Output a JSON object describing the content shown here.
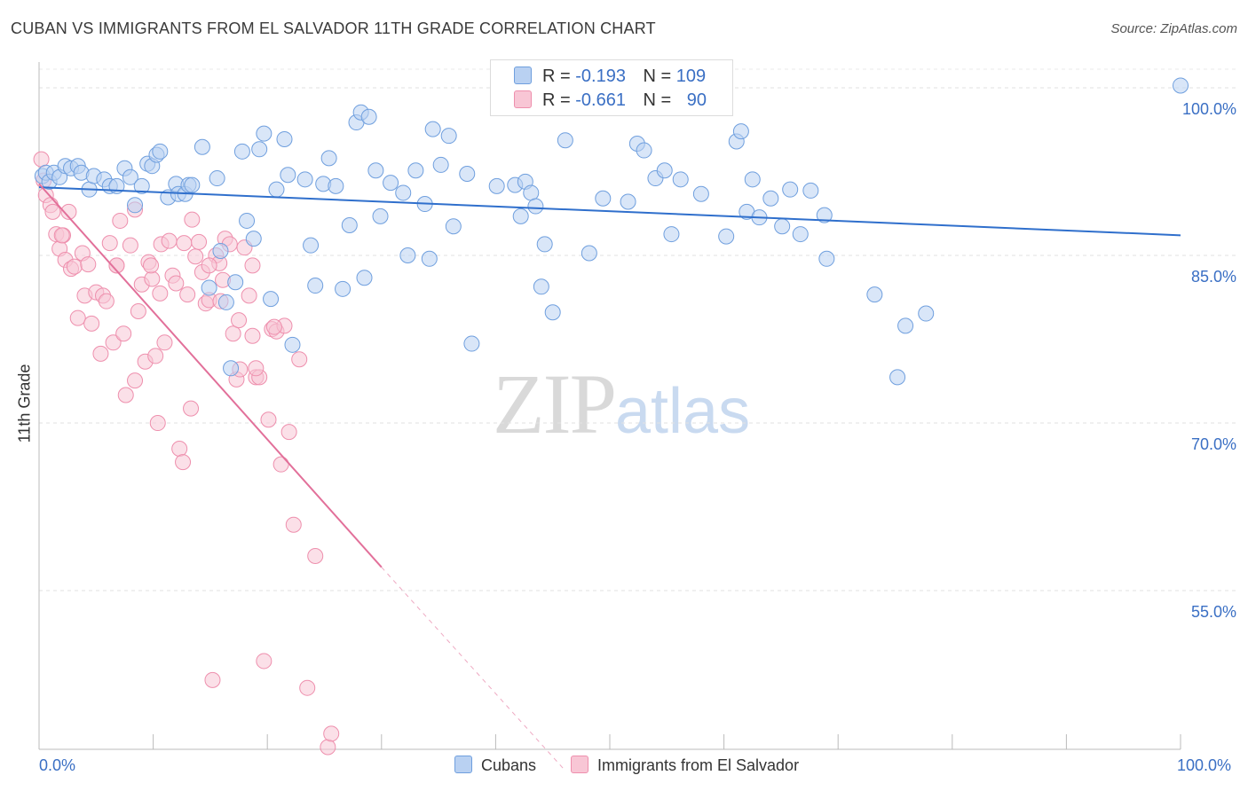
{
  "header": {
    "title": "CUBAN VS IMMIGRANTS FROM EL SALVADOR 11TH GRADE CORRELATION CHART",
    "source": "Source: ZipAtlas.com"
  },
  "watermark": {
    "zip": "ZIP",
    "atlas": "atlas"
  },
  "legend": {
    "rows": [
      {
        "r_label": "R =",
        "r_value": "-0.193",
        "n_label": "N =",
        "n_value": "109",
        "color": "#a9c7ee"
      },
      {
        "r_label": "R =",
        "r_value": "-0.661",
        "n_label": "N =",
        "n_value": "90",
        "color": "#f6b7c9"
      }
    ]
  },
  "bottom_legend": {
    "cubans": "Cubans",
    "salvador": "Immigrants from El Salvador"
  },
  "chart_data": {
    "type": "scatter",
    "ylabel": "11th Grade",
    "xlim": [
      0,
      100
    ],
    "ylim": [
      40.8,
      102.3
    ],
    "x_tick_labels": [
      "0.0%",
      "100.0%"
    ],
    "y_ticks": [
      {
        "value": 100,
        "label": "100.0%"
      },
      {
        "value": 85,
        "label": "85.0%"
      },
      {
        "value": 70,
        "label": "70.0%"
      },
      {
        "value": 55,
        "label": "55.0%"
      }
    ],
    "grid": true,
    "colors": {
      "cubans": "#6f9fde",
      "cubans_fill": "#b9d1f2",
      "cubans_line": "#2f6fcc",
      "salvador": "#ee8fad",
      "salvador_fill": "#f8c6d5",
      "salvador_line": "#e2709a"
    },
    "series": [
      {
        "name": "Cubans",
        "trend": {
          "x0": 0,
          "y0": 91.1,
          "x1": 100,
          "y1": 86.8
        },
        "points": [
          [
            0.3,
            92.1
          ],
          [
            0.6,
            92.4
          ],
          [
            0.9,
            91.6
          ],
          [
            1.3,
            92.4
          ],
          [
            1.8,
            92.0
          ],
          [
            2.3,
            93.0
          ],
          [
            2.8,
            92.8
          ],
          [
            3.4,
            93.0
          ],
          [
            3.7,
            92.4
          ],
          [
            4.4,
            90.9
          ],
          [
            4.8,
            92.1
          ],
          [
            5.7,
            91.8
          ],
          [
            6.2,
            91.2
          ],
          [
            6.8,
            91.2
          ],
          [
            7.5,
            92.8
          ],
          [
            8.0,
            92.0
          ],
          [
            8.4,
            89.5
          ],
          [
            9.0,
            91.2
          ],
          [
            9.5,
            93.2
          ],
          [
            9.9,
            93.0
          ],
          [
            10.3,
            94.0
          ],
          [
            10.6,
            94.3
          ],
          [
            11.3,
            90.2
          ],
          [
            12.0,
            91.4
          ],
          [
            12.2,
            90.5
          ],
          [
            12.8,
            90.5
          ],
          [
            13.1,
            91.3
          ],
          [
            13.4,
            91.3
          ],
          [
            14.3,
            94.7
          ],
          [
            14.9,
            82.1
          ],
          [
            15.6,
            91.9
          ],
          [
            15.9,
            85.4
          ],
          [
            16.4,
            80.8
          ],
          [
            16.8,
            74.9
          ],
          [
            17.2,
            82.6
          ],
          [
            17.8,
            94.3
          ],
          [
            18.2,
            88.1
          ],
          [
            18.8,
            86.5
          ],
          [
            19.3,
            94.5
          ],
          [
            19.7,
            95.9
          ],
          [
            20.3,
            81.1
          ],
          [
            20.8,
            90.9
          ],
          [
            21.5,
            95.4
          ],
          [
            21.8,
            92.2
          ],
          [
            22.2,
            77.0
          ],
          [
            23.3,
            91.8
          ],
          [
            23.8,
            85.9
          ],
          [
            24.2,
            82.3
          ],
          [
            24.9,
            91.4
          ],
          [
            25.4,
            93.7
          ],
          [
            26.0,
            91.2
          ],
          [
            26.6,
            82.0
          ],
          [
            27.2,
            87.7
          ],
          [
            27.8,
            96.9
          ],
          [
            28.2,
            97.8
          ],
          [
            28.5,
            83.0
          ],
          [
            28.9,
            97.4
          ],
          [
            29.5,
            92.6
          ],
          [
            29.9,
            88.5
          ],
          [
            30.8,
            91.5
          ],
          [
            31.9,
            90.6
          ],
          [
            32.3,
            85.0
          ],
          [
            33.0,
            92.6
          ],
          [
            33.8,
            89.6
          ],
          [
            34.2,
            84.7
          ],
          [
            34.5,
            96.3
          ],
          [
            35.2,
            93.1
          ],
          [
            35.9,
            95.7
          ],
          [
            36.3,
            87.6
          ],
          [
            37.5,
            92.3
          ],
          [
            37.9,
            77.1
          ],
          [
            40.1,
            91.2
          ],
          [
            41.7,
            91.3
          ],
          [
            42.2,
            88.5
          ],
          [
            42.6,
            91.6
          ],
          [
            43.1,
            90.6
          ],
          [
            43.5,
            89.4
          ],
          [
            44.0,
            82.2
          ],
          [
            44.3,
            86.0
          ],
          [
            45.0,
            79.9
          ],
          [
            46.1,
            95.3
          ],
          [
            48.2,
            85.2
          ],
          [
            49.4,
            90.1
          ],
          [
            51.6,
            89.8
          ],
          [
            52.4,
            95.0
          ],
          [
            53.0,
            94.4
          ],
          [
            54.0,
            91.9
          ],
          [
            54.8,
            92.6
          ],
          [
            55.4,
            86.9
          ],
          [
            56.2,
            91.8
          ],
          [
            58.0,
            90.5
          ],
          [
            60.2,
            86.7
          ],
          [
            61.1,
            95.2
          ],
          [
            61.5,
            96.1
          ],
          [
            62.0,
            88.9
          ],
          [
            62.5,
            91.8
          ],
          [
            63.1,
            88.4
          ],
          [
            64.1,
            90.1
          ],
          [
            65.1,
            87.6
          ],
          [
            65.8,
            90.9
          ],
          [
            66.7,
            86.9
          ],
          [
            67.6,
            90.8
          ],
          [
            68.8,
            88.6
          ],
          [
            69.0,
            84.7
          ],
          [
            73.2,
            81.5
          ],
          [
            75.2,
            74.1
          ],
          [
            75.9,
            78.7
          ],
          [
            77.7,
            79.8
          ],
          [
            100.0,
            100.2
          ]
        ]
      },
      {
        "name": "Immigrants from El Salvador",
        "trend": {
          "x0": 0,
          "y0": 91.4,
          "x1": 30,
          "y1": 57.1,
          "dash_x1": 46,
          "dash_y1": 39.0
        },
        "points": [
          [
            0.2,
            93.6
          ],
          [
            0.4,
            91.7
          ],
          [
            0.6,
            90.4
          ],
          [
            1.0,
            89.5
          ],
          [
            1.2,
            88.9
          ],
          [
            1.5,
            86.9
          ],
          [
            1.8,
            85.6
          ],
          [
            2.1,
            86.8
          ],
          [
            2.3,
            84.6
          ],
          [
            2.6,
            88.9
          ],
          [
            2.8,
            83.8
          ],
          [
            3.1,
            84.0
          ],
          [
            3.4,
            79.4
          ],
          [
            3.8,
            85.2
          ],
          [
            4.0,
            81.4
          ],
          [
            4.3,
            84.2
          ],
          [
            4.6,
            78.9
          ],
          [
            5.0,
            81.7
          ],
          [
            5.4,
            76.2
          ],
          [
            5.6,
            81.4
          ],
          [
            5.9,
            80.9
          ],
          [
            6.2,
            86.1
          ],
          [
            6.5,
            77.2
          ],
          [
            6.8,
            84.1
          ],
          [
            7.1,
            88.1
          ],
          [
            7.4,
            78.0
          ],
          [
            7.6,
            72.5
          ],
          [
            8.0,
            85.9
          ],
          [
            8.4,
            73.8
          ],
          [
            8.7,
            80.0
          ],
          [
            9.0,
            82.4
          ],
          [
            9.3,
            75.5
          ],
          [
            9.6,
            84.4
          ],
          [
            9.9,
            82.9
          ],
          [
            10.2,
            76.0
          ],
          [
            10.4,
            70.0
          ],
          [
            10.7,
            86.0
          ],
          [
            11.0,
            77.2
          ],
          [
            11.4,
            86.3
          ],
          [
            11.7,
            83.2
          ],
          [
            12.0,
            82.5
          ],
          [
            12.3,
            67.7
          ],
          [
            12.6,
            66.5
          ],
          [
            13.0,
            81.5
          ],
          [
            13.3,
            71.3
          ],
          [
            13.7,
            84.9
          ],
          [
            14.0,
            86.2
          ],
          [
            14.3,
            83.5
          ],
          [
            14.6,
            80.7
          ],
          [
            14.9,
            81.0
          ],
          [
            15.2,
            47.0
          ],
          [
            15.5,
            85.0
          ],
          [
            15.9,
            80.9
          ],
          [
            16.3,
            86.5
          ],
          [
            16.7,
            86.0
          ],
          [
            17.0,
            78.0
          ],
          [
            17.3,
            73.9
          ],
          [
            17.6,
            74.8
          ],
          [
            18.0,
            85.7
          ],
          [
            18.4,
            81.4
          ],
          [
            18.7,
            77.8
          ],
          [
            19.0,
            74.1
          ],
          [
            19.3,
            74.1
          ],
          [
            19.7,
            48.7
          ],
          [
            20.1,
            70.3
          ],
          [
            20.4,
            78.4
          ],
          [
            20.8,
            78.2
          ],
          [
            21.2,
            66.3
          ],
          [
            21.5,
            78.7
          ],
          [
            21.9,
            69.2
          ],
          [
            22.3,
            60.9
          ],
          [
            22.8,
            75.7
          ],
          [
            23.5,
            46.3
          ],
          [
            24.2,
            58.1
          ],
          [
            25.3,
            41.0
          ],
          [
            25.6,
            42.2
          ],
          [
            6.8,
            84.1
          ],
          [
            9.8,
            84.1
          ],
          [
            2.0,
            86.8
          ],
          [
            12.7,
            86.1
          ],
          [
            15.8,
            84.3
          ],
          [
            13.4,
            88.2
          ],
          [
            14.9,
            84.1
          ],
          [
            16.1,
            82.8
          ],
          [
            18.7,
            84.1
          ],
          [
            10.6,
            81.6
          ],
          [
            17.5,
            79.2
          ],
          [
            19.0,
            74.9
          ],
          [
            20.6,
            78.6
          ],
          [
            8.4,
            89.1
          ]
        ]
      }
    ]
  }
}
